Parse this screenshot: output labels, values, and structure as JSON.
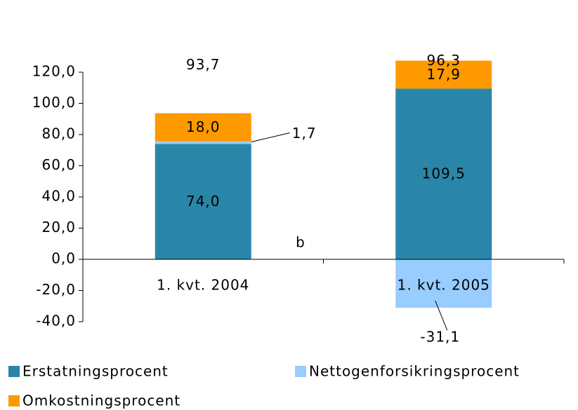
{
  "chart_data": {
    "type": "stacked_bar",
    "categories": [
      "1. kvt. 2004",
      "1. kvt. 2005"
    ],
    "series": [
      {
        "name": "Erstatningsprocent",
        "color": "#2a86a8",
        "values": [
          74.0,
          109.5
        ],
        "value_labels": [
          "74,0",
          "109,5"
        ]
      },
      {
        "name": "Nettogenforsikringsprocent",
        "color": "#99ccff",
        "values": [
          1.7,
          -31.1
        ],
        "value_labels": [
          "1,7",
          "-31,1"
        ]
      },
      {
        "name": "Omkostningsprocent",
        "color": "#ff9900",
        "values": [
          18.0,
          17.9
        ],
        "value_labels": [
          "18,0",
          "17,9"
        ]
      }
    ],
    "totals": {
      "values": [
        93.7,
        96.3
      ],
      "value_labels": [
        "93,7",
        "96,3"
      ]
    },
    "annotation": "b",
    "ylim": [
      -40,
      120
    ],
    "yticks": [
      {
        "value": -40,
        "label": "-40,0"
      },
      {
        "value": -20,
        "label": "-20,0"
      },
      {
        "value": 0,
        "label": "0,0"
      },
      {
        "value": 20,
        "label": "20,0"
      },
      {
        "value": 40,
        "label": "40,0"
      },
      {
        "value": 60,
        "label": "60,0"
      },
      {
        "value": 80,
        "label": "80,0"
      },
      {
        "value": 100,
        "label": "100,0"
      },
      {
        "value": 120,
        "label": "120,0"
      }
    ],
    "grid": false,
    "legend": "bottom"
  }
}
